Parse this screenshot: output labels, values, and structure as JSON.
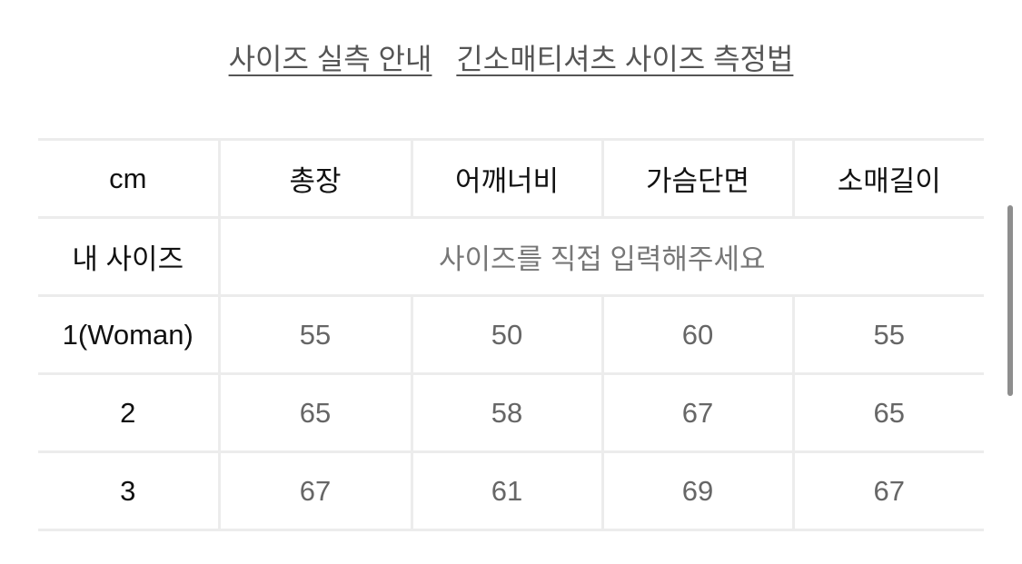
{
  "links": [
    "사이즈 실측 안내",
    "긴소매티셔츠 사이즈 측정법"
  ],
  "table": {
    "headers": [
      "cm",
      "총장",
      "어깨너비",
      "가슴단면",
      "소매길이"
    ],
    "my_size": {
      "label": "내 사이즈",
      "placeholder": "사이즈를 직접 입력해주세요"
    },
    "rows": [
      {
        "size": "1(Woman)",
        "values": [
          "55",
          "50",
          "60",
          "55"
        ]
      },
      {
        "size": "2",
        "values": [
          "65",
          "58",
          "67",
          "65"
        ]
      },
      {
        "size": "3",
        "values": [
          "67",
          "61",
          "69",
          "67"
        ]
      }
    ]
  }
}
